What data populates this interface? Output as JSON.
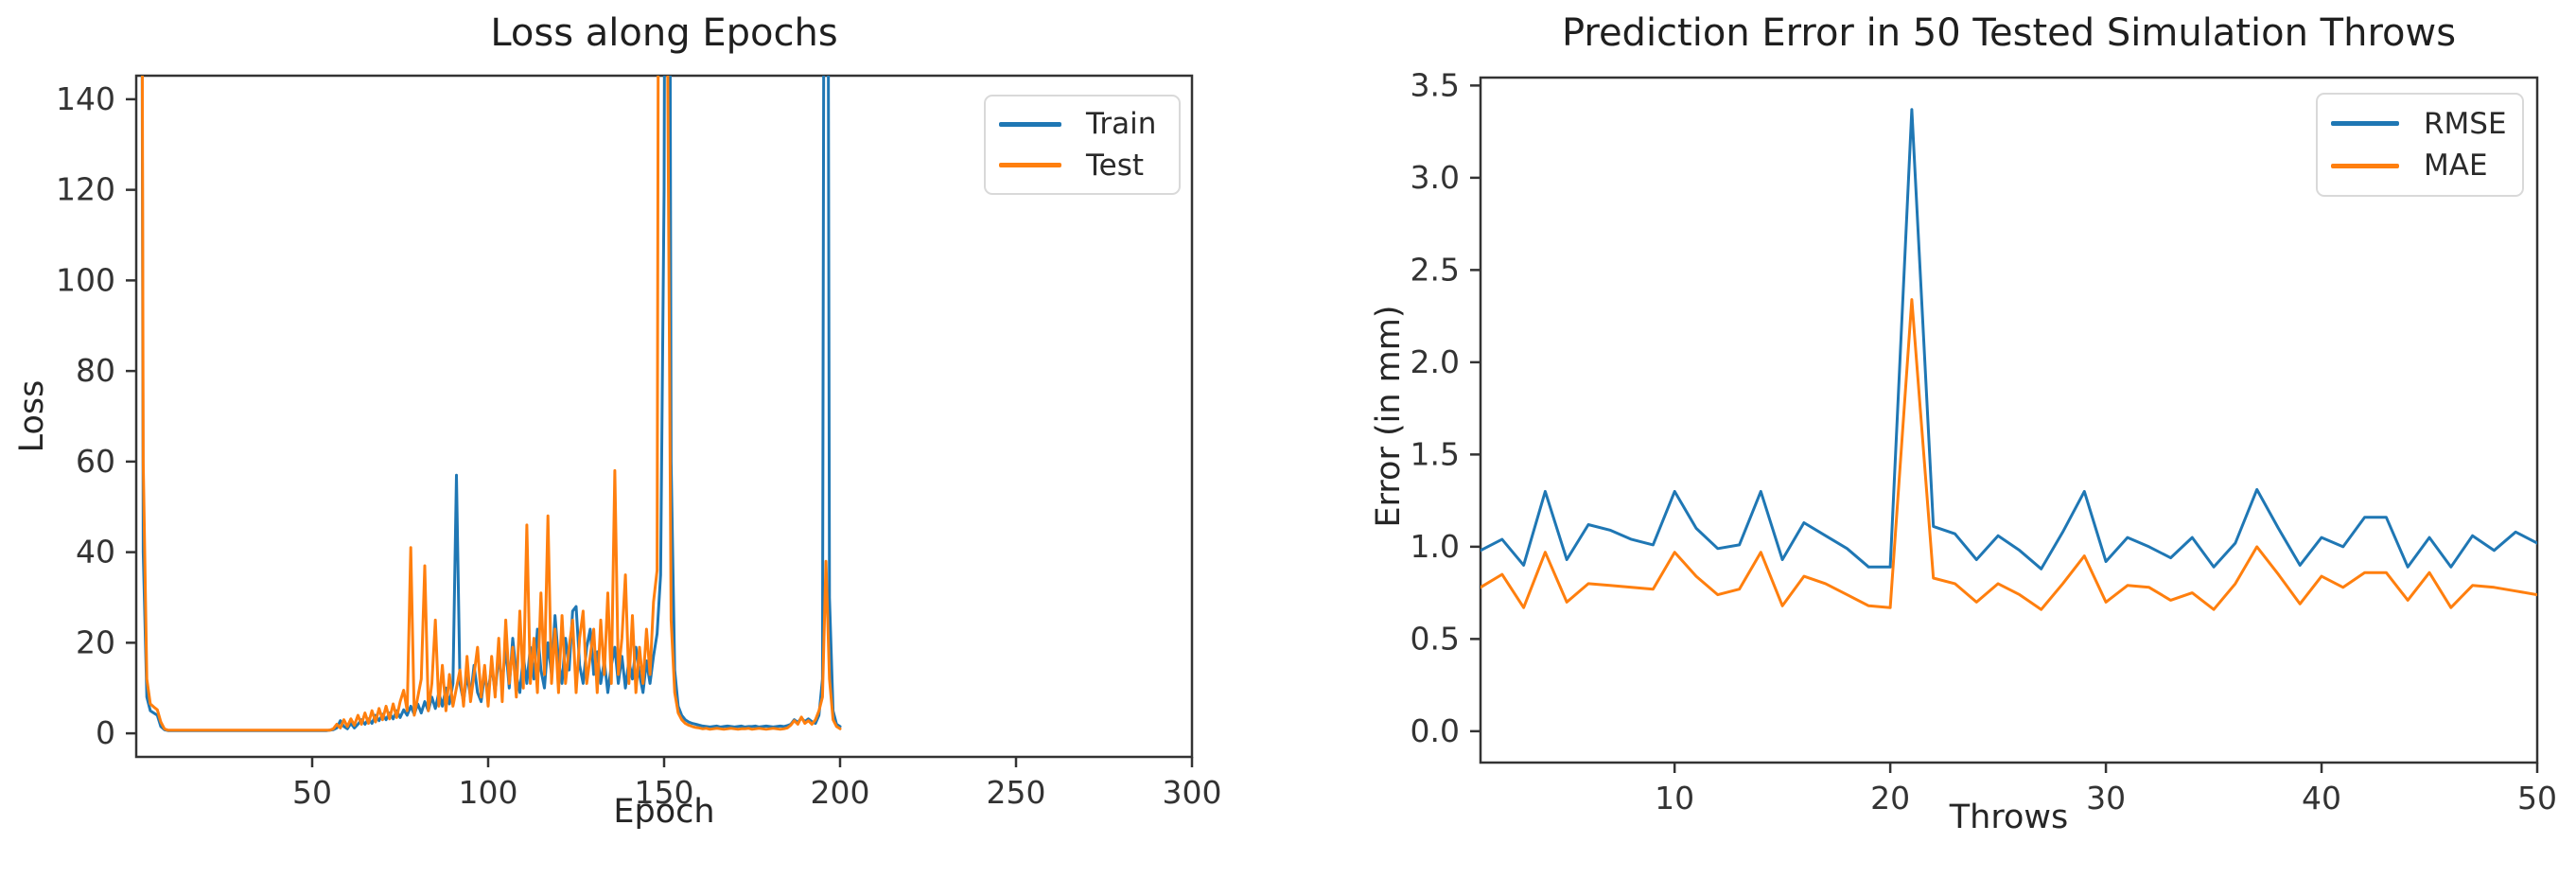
{
  "colors": {
    "train": "#1f77b4",
    "test": "#ff7f0e",
    "rmse": "#1f77b4",
    "mae": "#ff7f0e",
    "axis": "#333333",
    "legend_border": "#d9d9d9"
  },
  "chart_data": [
    {
      "type": "line",
      "title": "Loss along Epochs",
      "xlabel": "Epoch",
      "ylabel": "Loss",
      "xlim": [
        0,
        300
      ],
      "ylim": [
        -5.2,
        145.2
      ],
      "grid": false,
      "legend_position": "upper right",
      "x_ticks": [
        50,
        100,
        150,
        200,
        250,
        300
      ],
      "x_tick_labels": [
        "50",
        "100",
        "150",
        "200",
        "250",
        "300"
      ],
      "y_ticks": [
        0,
        20,
        40,
        60,
        80,
        100,
        120,
        140
      ],
      "y_tick_labels": [
        "0",
        "20",
        "40",
        "60",
        "80",
        "100",
        "120",
        "140"
      ],
      "series": [
        {
          "name": "Train",
          "color": "#1f77b4",
          "x_start": 1,
          "x_step": 1,
          "values": [
            400,
            40,
            8,
            5,
            4.5,
            4,
            1.5,
            0.8,
            0.6,
            0.6,
            0.6,
            0.6,
            0.6,
            0.6,
            0.6,
            0.6,
            0.6,
            0.6,
            0.6,
            0.6,
            0.6,
            0.6,
            0.6,
            0.6,
            0.6,
            0.6,
            0.6,
            0.6,
            0.6,
            0.6,
            0.6,
            0.6,
            0.6,
            0.6,
            0.6,
            0.6,
            0.6,
            0.6,
            0.6,
            0.6,
            0.6,
            0.6,
            0.6,
            0.6,
            0.6,
            0.6,
            0.6,
            0.6,
            0.6,
            0.6,
            0.6,
            0.6,
            0.6,
            0.6,
            0.7,
            0.8,
            1.2,
            2.8,
            1.5,
            1.0,
            2.2,
            1.2,
            2.0,
            3.0,
            2.0,
            3.2,
            2.2,
            4.0,
            2.8,
            4.2,
            3.0,
            4.5,
            3.2,
            5.0,
            3.5,
            5.2,
            4.0,
            6.0,
            4.2,
            6.5,
            4.5,
            7.0,
            5.0,
            8.0,
            5.5,
            9.0,
            6.0,
            10,
            6.5,
            11,
            57,
            11,
            7,
            13,
            8,
            15,
            9,
            7,
            13,
            9,
            15,
            9,
            17,
            11,
            19,
            10,
            21,
            13,
            9,
            17,
            11,
            19,
            12,
            23,
            14,
            10,
            20,
            13,
            26,
            16,
            11,
            21,
            14,
            27,
            28,
            15,
            11,
            19,
            23,
            13,
            18,
            11,
            16,
            9,
            15,
            19,
            11,
            17,
            10,
            16,
            12,
            19,
            13,
            9,
            16,
            11,
            17,
            22,
            35,
            120,
            400,
            60,
            14,
            6,
            4,
            3,
            2.5,
            2.2,
            2.0,
            1.8,
            1.6,
            1.5,
            1.4,
            1.5,
            1.6,
            1.4,
            1.5,
            1.6,
            1.5,
            1.4,
            1.5,
            1.6,
            1.4,
            1.5,
            1.5,
            1.6,
            1.4,
            1.5,
            1.6,
            1.5,
            1.4,
            1.5,
            1.6,
            1.5,
            1.7,
            2.0,
            3.0,
            2.4,
            3.4,
            2.6,
            3.2,
            2.6,
            2.2,
            4.0,
            12,
            400,
            30,
            5,
            2,
            1.5
          ]
        },
        {
          "name": "Test",
          "color": "#ff7f0e",
          "x_start": 1,
          "x_step": 1,
          "values": [
            400,
            60,
            12,
            6.5,
            5.8,
            5.2,
            2.5,
            1.0,
            0.7,
            0.7,
            0.7,
            0.7,
            0.7,
            0.7,
            0.7,
            0.7,
            0.7,
            0.7,
            0.7,
            0.7,
            0.7,
            0.7,
            0.7,
            0.7,
            0.7,
            0.7,
            0.7,
            0.7,
            0.7,
            0.7,
            0.7,
            0.7,
            0.7,
            0.7,
            0.7,
            0.7,
            0.7,
            0.7,
            0.7,
            0.7,
            0.7,
            0.7,
            0.7,
            0.7,
            0.7,
            0.7,
            0.7,
            0.7,
            0.7,
            0.7,
            0.7,
            0.7,
            0.7,
            0.7,
            0.7,
            1.0,
            2.0,
            1.2,
            3.0,
            1.5,
            3.2,
            1.8,
            4.0,
            2.0,
            4.5,
            2.2,
            5.0,
            2.5,
            5.5,
            3.0,
            6.0,
            3.2,
            6.5,
            3.5,
            7.0,
            9.5,
            5.0,
            41,
            4.0,
            8.0,
            12,
            37,
            5.0,
            11,
            25,
            6,
            15,
            5,
            13,
            6,
            10,
            14,
            6,
            17,
            7,
            13,
            19,
            8,
            15,
            6,
            17,
            8,
            21,
            7,
            25,
            11,
            19,
            8,
            27,
            10,
            46,
            11,
            21,
            9,
            31,
            13,
            48,
            11,
            23,
            9,
            26,
            11,
            19,
            25,
            9,
            21,
            27,
            11,
            17,
            23,
            9,
            25,
            13,
            31,
            11,
            58,
            13,
            21,
            35,
            11,
            26,
            9,
            19,
            11,
            23,
            13,
            29,
            36,
            400,
            400,
            150,
            25,
            9,
            4.5,
            3.0,
            2.2,
            1.8,
            1.5,
            1.3,
            1.2,
            1.0,
            1.1,
            0.9,
            1.0,
            1.1,
            1.0,
            0.9,
            1.0,
            1.1,
            1.0,
            0.9,
            1.0,
            1.0,
            1.1,
            0.9,
            1.0,
            1.1,
            1.0,
            0.9,
            1.0,
            1.1,
            1.0,
            0.9,
            1.0,
            1.2,
            1.8,
            2.8,
            2.0,
            3.6,
            2.2,
            2.8,
            2.0,
            3.0,
            5.0,
            8.0,
            38,
            12,
            3.0,
            1.5,
            1.0
          ]
        }
      ]
    },
    {
      "type": "line",
      "title": "Prediction Error in 50 Tested Simulation Throws",
      "xlabel": "Throws",
      "ylabel": "Error (in mm)",
      "xlim": [
        1,
        50
      ],
      "ylim": [
        -0.17,
        3.543
      ],
      "grid": false,
      "legend_position": "upper right",
      "x_ticks": [
        10,
        20,
        30,
        40,
        50
      ],
      "x_tick_labels": [
        "10",
        "20",
        "30",
        "40",
        "50"
      ],
      "y_ticks": [
        0.0,
        0.5,
        1.0,
        1.5,
        2.0,
        2.5,
        3.0,
        3.5
      ],
      "y_tick_labels": [
        "0.0",
        "0.5",
        "1.0",
        "1.5",
        "2.0",
        "2.5",
        "3.0",
        "3.5"
      ],
      "series": [
        {
          "name": "RMSE",
          "color": "#1f77b4",
          "x_start": 1,
          "x_step": 1,
          "values": [
            0.98,
            1.04,
            0.9,
            1.3,
            0.93,
            1.12,
            1.09,
            1.04,
            1.01,
            1.3,
            1.1,
            0.99,
            1.01,
            1.3,
            0.93,
            1.13,
            1.06,
            0.99,
            0.89,
            0.89,
            3.37,
            1.11,
            1.07,
            0.93,
            1.06,
            0.98,
            0.88,
            1.08,
            1.3,
            0.92,
            1.05,
            1.0,
            0.94,
            1.05,
            0.89,
            1.02,
            1.31,
            1.1,
            0.9,
            1.05,
            1.0,
            1.16,
            1.16,
            0.89,
            1.05,
            0.89,
            1.06,
            0.98,
            1.08,
            1.02
          ]
        },
        {
          "name": "MAE",
          "color": "#ff7f0e",
          "x_start": 1,
          "x_step": 1,
          "values": [
            0.78,
            0.85,
            0.67,
            0.97,
            0.7,
            0.8,
            0.79,
            0.78,
            0.77,
            0.97,
            0.84,
            0.74,
            0.77,
            0.97,
            0.68,
            0.84,
            0.8,
            0.74,
            0.68,
            0.67,
            2.34,
            0.83,
            0.8,
            0.7,
            0.8,
            0.74,
            0.66,
            0.8,
            0.95,
            0.7,
            0.79,
            0.78,
            0.71,
            0.75,
            0.66,
            0.8,
            1.0,
            0.85,
            0.69,
            0.84,
            0.78,
            0.86,
            0.86,
            0.71,
            0.86,
            0.67,
            0.79,
            0.78,
            0.76,
            0.74
          ]
        }
      ]
    }
  ]
}
